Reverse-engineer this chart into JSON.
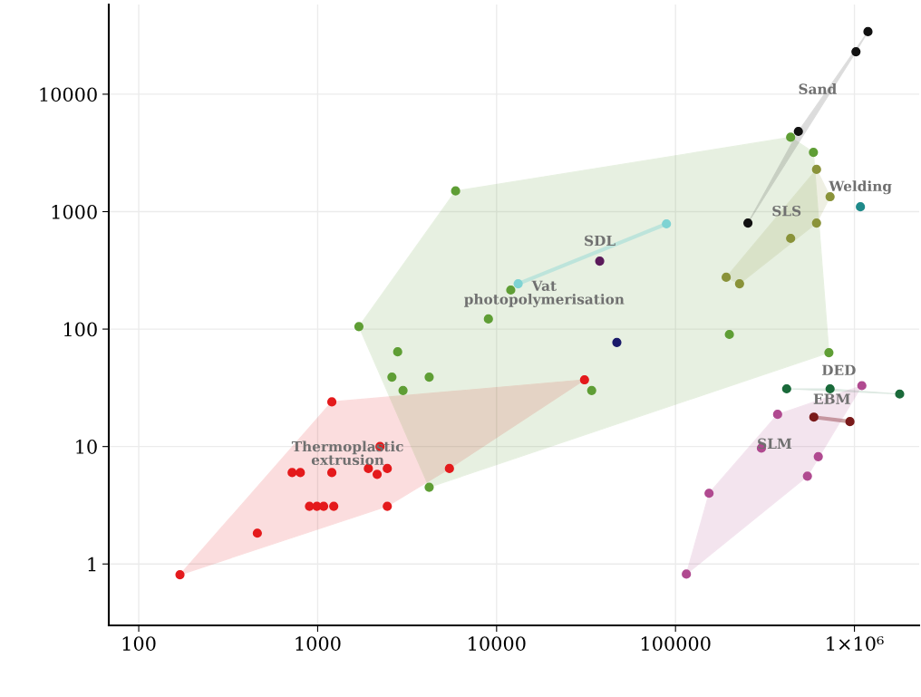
{
  "chart_data": {
    "type": "scatter",
    "log": "xy",
    "grid": true,
    "legend": false,
    "marker": "circle",
    "xlim": [
      68,
      2300000
    ],
    "ylim": [
      0.3,
      58000
    ],
    "xticks": [
      100,
      1000,
      10000,
      100000,
      {
        "value": 1000000,
        "label": "1×10⁶"
      }
    ],
    "yticks": [
      1,
      10,
      100,
      1000,
      10000
    ],
    "series": [
      {
        "name": "Thermoplastic\nextrusion",
        "color": "#e41a1c",
        "x": [
          170,
          460,
          720,
          800,
          900,
          990,
          1080,
          1230,
          1200,
          1200,
          2230,
          1920,
          2150,
          2450,
          2450,
          5450,
          31000
        ],
        "values": [
          0.81,
          1.83,
          6.0,
          6.0,
          3.1,
          3.1,
          3.1,
          3.1,
          24,
          6.0,
          10,
          6.5,
          5.8,
          6.5,
          3.1,
          6.5,
          37
        ]
      },
      {
        "name": "Vat\nphotopolymerisation",
        "color": "#5f9e35",
        "x": [
          5900,
          1700,
          2800,
          2600,
          4200,
          3000,
          9000,
          12000,
          34000,
          4200,
          200000,
          720000,
          590000,
          440000
        ],
        "values": [
          1500,
          105,
          64,
          39,
          39,
          30,
          122,
          215,
          30,
          4.5,
          90,
          63,
          3200,
          4300
        ]
      },
      {
        "name": "SLS",
        "color": "#8a933a",
        "x": [
          192000,
          228000,
          440000,
          614000,
          731000,
          614000
        ],
        "values": [
          276,
          243,
          592,
          800,
          1340,
          2290
        ]
      },
      {
        "name": "Sand",
        "color": "#111111",
        "x": [
          1190000,
          1020000,
          486000,
          254000
        ],
        "values": [
          34100,
          23000,
          4820,
          800
        ]
      },
      {
        "name": "Welding",
        "color": "#1f8a8a",
        "x": [
          1080000
        ],
        "values": [
          1100
        ]
      },
      {
        "name": null,
        "color": "#7fd3d3",
        "x": [
          13200,
          89000
        ],
        "values": [
          243,
          787
        ]
      },
      {
        "name": "SDL",
        "color": "#5a1a5a",
        "x": [
          37700
        ],
        "values": [
          379
        ]
      },
      {
        "name": null,
        "color": "#1a1a6a",
        "x": [
          47000
        ],
        "values": [
          77
        ]
      },
      {
        "name": "DED",
        "color": "#1a6a3a",
        "x": [
          418000,
          731000,
          1790000
        ],
        "values": [
          31,
          31,
          28
        ]
      },
      {
        "name": "EBM",
        "color": "#7a1a1a",
        "x": [
          593000,
          944000
        ],
        "values": [
          17.8,
          16.3
        ]
      },
      {
        "name": "SLM",
        "color": "#b04a90",
        "x": [
          1100000,
          372000,
          302000,
          628000,
          546000,
          154000,
          115000
        ],
        "values": [
          33,
          18.8,
          9.7,
          8.2,
          5.6,
          4.0,
          0.82
        ]
      }
    ]
  }
}
